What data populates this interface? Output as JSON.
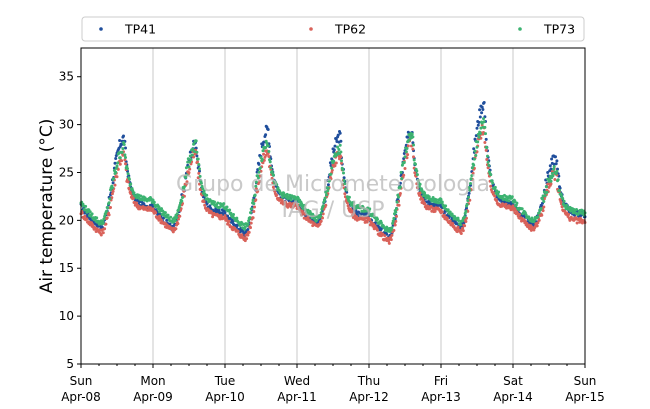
{
  "chart_data": {
    "type": "scatter",
    "title": "",
    "ylabel": "Air temperature (°C)",
    "xlabel": "",
    "ylim": [
      5,
      38
    ],
    "yticks": [
      5,
      10,
      15,
      20,
      25,
      30,
      35
    ],
    "xlim_days": [
      0,
      7
    ],
    "xtick_labels": [
      {
        "day": "Sun",
        "date": "Apr-08"
      },
      {
        "day": "Mon",
        "date": "Apr-09"
      },
      {
        "day": "Tue",
        "date": "Apr-10"
      },
      {
        "day": "Wed",
        "date": "Apr-11"
      },
      {
        "day": "Thu",
        "date": "Apr-12"
      },
      {
        "day": "Fri",
        "date": "Apr-13"
      },
      {
        "day": "Sat",
        "date": "Apr-14"
      },
      {
        "day": "Sun",
        "date": "Apr-15"
      }
    ],
    "grid": "vertical",
    "legend_position": "top",
    "watermark": [
      "Grupo de Micrometeorologia",
      "IAG / USP"
    ],
    "series": [
      {
        "name": "TP41",
        "color": "#1f4e9c",
        "daily": [
          {
            "min": 19.3,
            "max": 28.6
          },
          {
            "min": 19.2,
            "max": 28.0
          },
          {
            "min": 18.6,
            "max": 29.5
          },
          {
            "min": 19.7,
            "max": 28.8
          },
          {
            "min": 18.2,
            "max": 29.4
          },
          {
            "min": 19.3,
            "max": 32.2
          },
          {
            "min": 19.5,
            "max": 26.5
          }
        ],
        "end": 20.6
      },
      {
        "name": "TP62",
        "color": "#d9625a",
        "daily": [
          {
            "min": 18.7,
            "max": 26.8
          },
          {
            "min": 18.9,
            "max": 27.0
          },
          {
            "min": 18.1,
            "max": 27.2
          },
          {
            "min": 19.3,
            "max": 27.0
          },
          {
            "min": 17.8,
            "max": 28.2
          },
          {
            "min": 18.8,
            "max": 29.6
          },
          {
            "min": 19.1,
            "max": 24.9
          }
        ],
        "end": 19.9
      },
      {
        "name": "TP73",
        "color": "#3cb371",
        "daily": [
          {
            "min": 19.7,
            "max": 27.6
          },
          {
            "min": 19.9,
            "max": 27.8
          },
          {
            "min": 19.3,
            "max": 28.2
          },
          {
            "min": 20.1,
            "max": 27.4
          },
          {
            "min": 18.9,
            "max": 29.0
          },
          {
            "min": 19.8,
            "max": 30.3
          },
          {
            "min": 20.0,
            "max": 25.2
          }
        ],
        "end": 20.8
      }
    ]
  }
}
